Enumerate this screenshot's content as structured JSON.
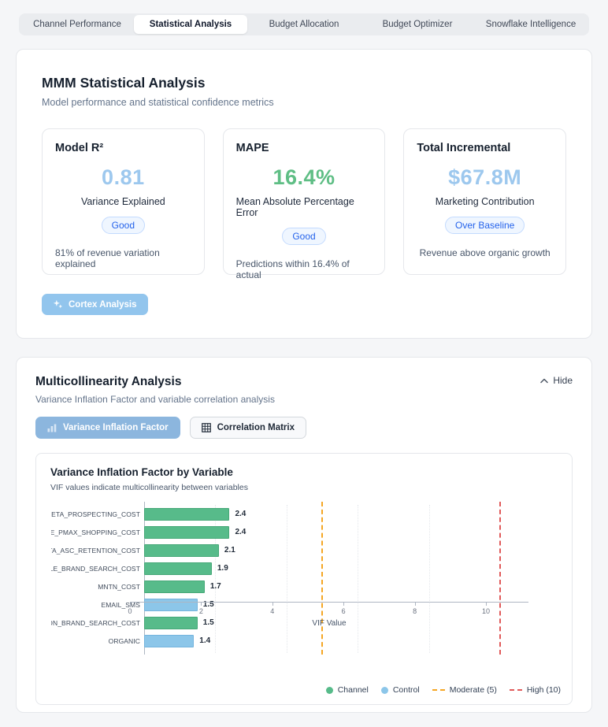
{
  "tabs": {
    "items": [
      {
        "label": "Channel Performance",
        "active": false
      },
      {
        "label": "Statistical Analysis",
        "active": true
      },
      {
        "label": "Budget Allocation",
        "active": false
      },
      {
        "label": "Budget Optimizer",
        "active": false
      },
      {
        "label": "Snowflake Intelligence",
        "active": false
      }
    ]
  },
  "statistical_card": {
    "title": "MMM Statistical Analysis",
    "subtitle": "Model performance and statistical confidence metrics",
    "metrics": [
      {
        "title": "Model R²",
        "value": "0.81",
        "value_color": "#9dc8ee",
        "label": "Variance Explained",
        "badge": "Good",
        "footnote": "81% of revenue variation explained"
      },
      {
        "title": "MAPE",
        "value": "16.4%",
        "value_color": "#5fbe85",
        "label": "Mean Absolute Percentage Error",
        "badge": "Good",
        "footnote": "Predictions within 16.4% of actual"
      },
      {
        "title": "Total Incremental",
        "value": "$67.8M",
        "value_color": "#9dc8ee",
        "label": "Marketing Contribution",
        "badge": "Over Baseline",
        "footnote": "Revenue above organic growth"
      }
    ],
    "cortex_button_label": "Cortex Analysis"
  },
  "multicollinearity_card": {
    "title": "Multicollinearity Analysis",
    "subtitle": "Variance Inflation Factor and variable correlation analysis",
    "hide_label": "Hide",
    "toggle_buttons": [
      {
        "label": "Variance Inflation Factor",
        "active": true
      },
      {
        "label": "Correlation Matrix",
        "active": false
      }
    ]
  },
  "chart_data": {
    "type": "bar",
    "orientation": "horizontal",
    "title": "Variance Inflation Factor by Variable",
    "subtitle": "VIF values indicate multicollinearity between variables",
    "xlabel": "VIF Value",
    "xlim": [
      0,
      11.2
    ],
    "xticks": [
      0,
      2,
      4,
      6,
      8,
      10
    ],
    "gridlines": [
      2,
      4,
      6,
      8
    ],
    "grid": true,
    "legend_position": "bottom-right",
    "categories": [
      "META_PROSPECTING_COST",
      "GOOGLE_PMAX_SHOPPING_COST",
      "META_ASC_RETENTION_COST",
      "GOOGLE_BRAND_SEARCH_COST",
      "MNTN_COST",
      "EMAIL_SMS",
      "GOOGLE_NON_BRAND_SEARCH_COST",
      "ORGANIC"
    ],
    "values": [
      2.4,
      2.4,
      2.1,
      1.9,
      1.7,
      1.5,
      1.5,
      1.4
    ],
    "groups": [
      "channel",
      "channel",
      "channel",
      "channel",
      "channel",
      "control",
      "channel",
      "control"
    ],
    "colors": {
      "channel": "#57bb8a",
      "control": "#8cc6e9"
    },
    "reference_lines": [
      {
        "label": "Moderate (5)",
        "value": 5,
        "color": "#f5a623"
      },
      {
        "label": "High (10)",
        "value": 10,
        "color": "#e05a5a"
      }
    ],
    "legend": [
      {
        "label": "Channel",
        "swatch": "dot",
        "color": "#57bb8a"
      },
      {
        "label": "Control",
        "swatch": "dot",
        "color": "#8cc6e9"
      },
      {
        "label": "Moderate (5)",
        "swatch": "dash",
        "color": "#f5a623"
      },
      {
        "label": "High (10)",
        "swatch": "dash",
        "color": "#e05a5a"
      }
    ]
  }
}
